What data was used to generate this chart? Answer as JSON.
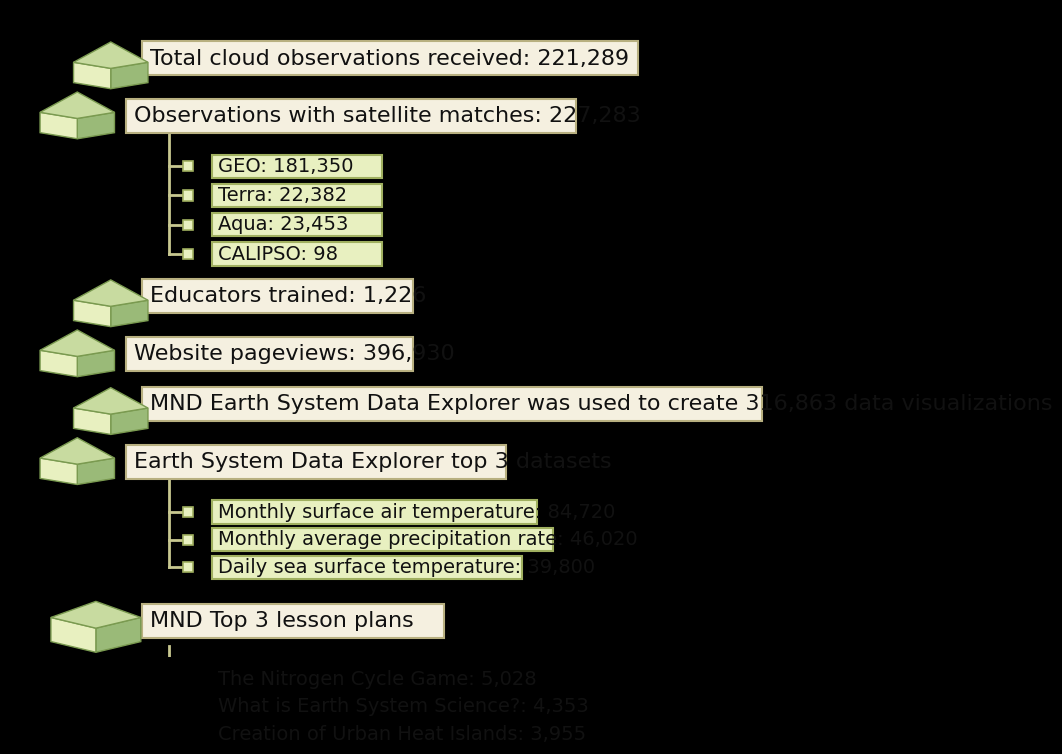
{
  "background_color": "#000000",
  "box_bg_color": "#f5f0e0",
  "box_border_color": "#b8b080",
  "small_box_bg_color": "#e8f0c0",
  "small_box_border_color": "#a0b060",
  "connector_color": "#c8c890",
  "cube_top": "#c8dba0",
  "cube_left": "#e8f0c0",
  "cube_right": "#9aba78",
  "cube_edge": "#7a9a50",
  "font_size_main": 16,
  "font_size_sub": 14,
  "text_color": "#111111",
  "main_items": [
    "Total cloud observations received: 221,289",
    "Observations with satellite matches: 227,283",
    "Educators trained: 1,226",
    "Website pageviews: 396,930",
    "MND Earth System Data Explorer was used to create 316,863 data visualizations",
    "Earth System Data Explorer top 3 datasets",
    "MND Top 3 lesson plans"
  ],
  "sub_items_group1": [
    "GEO: 181,350",
    "Terra: 22,382",
    "Aqua: 23,453",
    "CALIPSO: 98"
  ],
  "sub_items_group2": [
    "Monthly surface air temperature: 84,720",
    "Monthly average precipitation rate: 46,020",
    "Daily sea surface temperature: 39,800"
  ],
  "sub_items_group3": [
    "The Nitrogen Cycle Game: 5,028",
    "What is Earth System Science?: 4,353",
    "Creation of Urban Heat Islands: 3,955"
  ]
}
